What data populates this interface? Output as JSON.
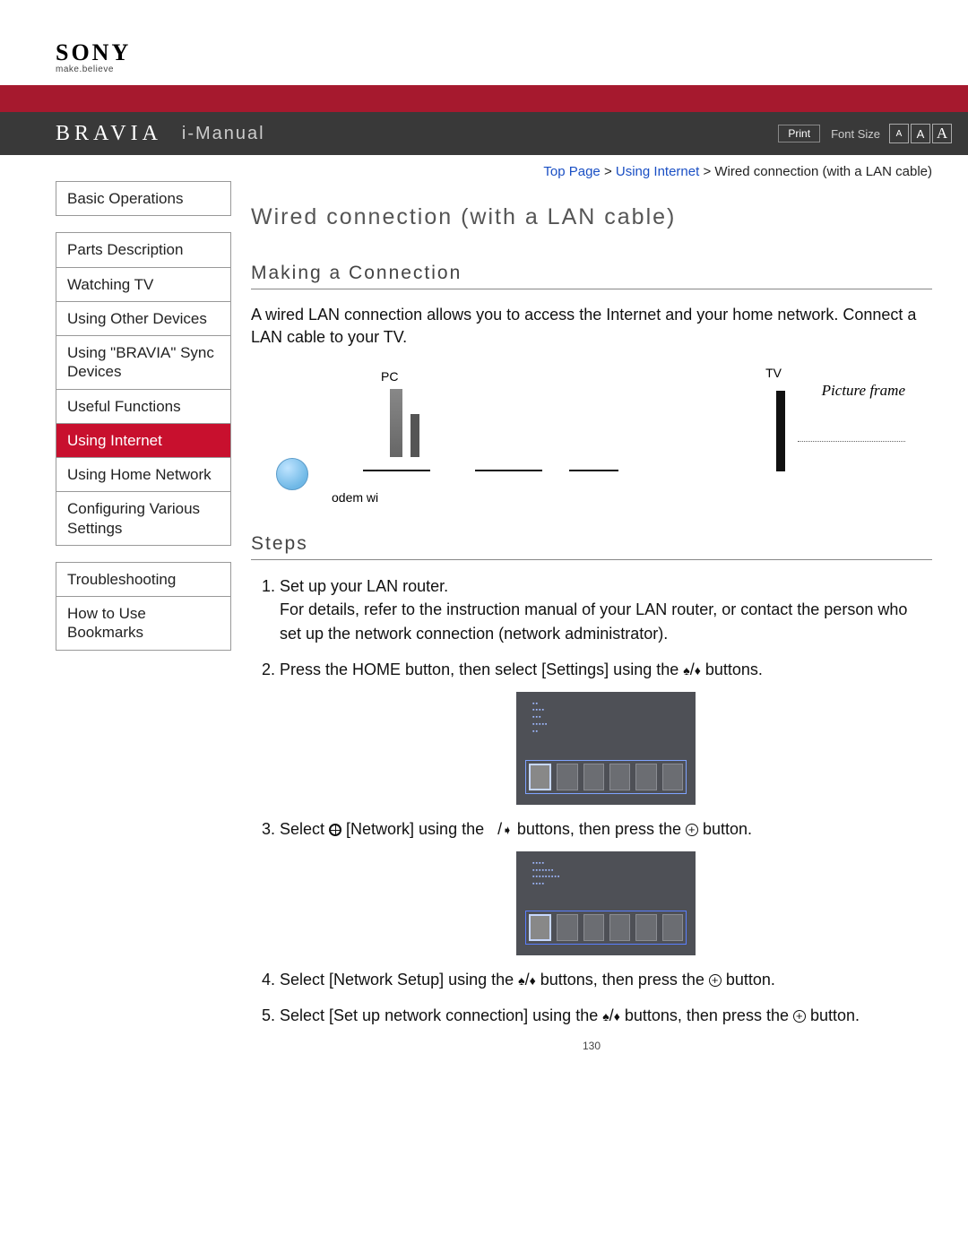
{
  "brand": {
    "logo": "SONY",
    "tagline": "make.believe"
  },
  "header": {
    "bravia": "BRAVIA",
    "imanual": "i-Manual",
    "print": "Print",
    "font_size_label": "Font Size",
    "fs_small": "A",
    "fs_med": "A",
    "fs_large": "A"
  },
  "breadcrumb": {
    "top": "Top Page",
    "cat": "Using Internet",
    "page": "Wired connection (with a LAN cable)",
    "sep": " > "
  },
  "nav": {
    "g1": [
      "Basic Operations"
    ],
    "g2": [
      "Parts Description",
      "Watching TV",
      "Using Other Devices",
      "Using \"BRAVIA\" Sync Devices",
      "Useful Functions",
      "Using Internet",
      "Using Home Network",
      "Configuring Various Settings"
    ],
    "g3": [
      "Troubleshooting",
      "How to Use Bookmarks"
    ],
    "active": "Using Internet"
  },
  "content": {
    "title": "Wired connection (with a LAN cable)",
    "section1": "Making a Connection",
    "intro": "A wired LAN connection allows you to access the Internet and your home network. Connect a LAN cable to your TV.",
    "diagram": {
      "pc": "PC",
      "tv": "TV",
      "pf": "Picture frame",
      "odem": "odem wi"
    },
    "section2": "Steps",
    "steps": [
      {
        "main": "Set up your LAN router.",
        "detail": "For details, refer to the instruction manual of your LAN router, or contact the person who set up the network connection (network administrator)."
      },
      {
        "pre": "Press the HOME button, then select [Settings] using the ",
        "post": " buttons."
      },
      {
        "pre": "Select ",
        "mid": " [Network] using the ",
        "mid2": " buttons, then press the ",
        "post": " button."
      },
      {
        "pre": "Select [Network Setup] using the ",
        "mid": " buttons, then press the ",
        "post": " button."
      },
      {
        "pre": "Select [Set up network connection] using the ",
        "mid": " buttons, then press the ",
        "post": " button."
      }
    ],
    "page_num": "130"
  },
  "colors": {
    "red_bar": "#a6192e",
    "title_bar": "#393939",
    "active_nav": "#c8102e",
    "link": "#1a4fc4"
  }
}
